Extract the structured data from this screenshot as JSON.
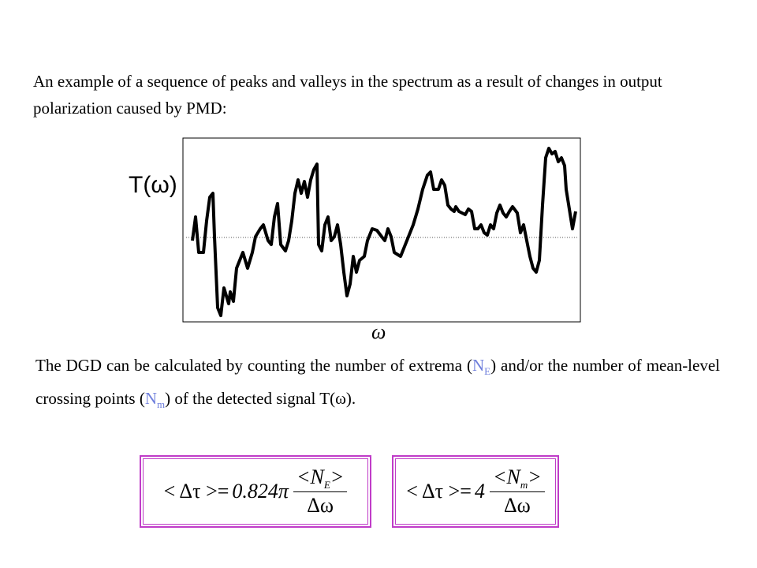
{
  "intro": "An example of  a sequence of peaks and valleys in the spectrum as a result of changes in output polarization caused by PMD:",
  "plot": {
    "y_label": "T(ω)",
    "x_label": "ω"
  },
  "description": {
    "part1": "The DGD can be calculated by counting the number of extrema (",
    "ne_symbol": "N",
    "ne_sub": "E",
    "part2": ") and/or  the number of mean-level crossing points (",
    "nm_symbol": "N",
    "nm_sub": "m",
    "part3": ")  of the detected signal T(ω)."
  },
  "formulas": [
    {
      "lhs": "< Δτ >=",
      "coefficient": "0.824π",
      "num_open": "<N",
      "num_sub": "E",
      "num_close": ">",
      "denominator": "Δω"
    },
    {
      "lhs": "< Δτ >=",
      "coefficient": "4",
      "num_open": "<N",
      "num_sub": "m",
      "num_close": ">",
      "denominator": "Δω"
    }
  ]
}
